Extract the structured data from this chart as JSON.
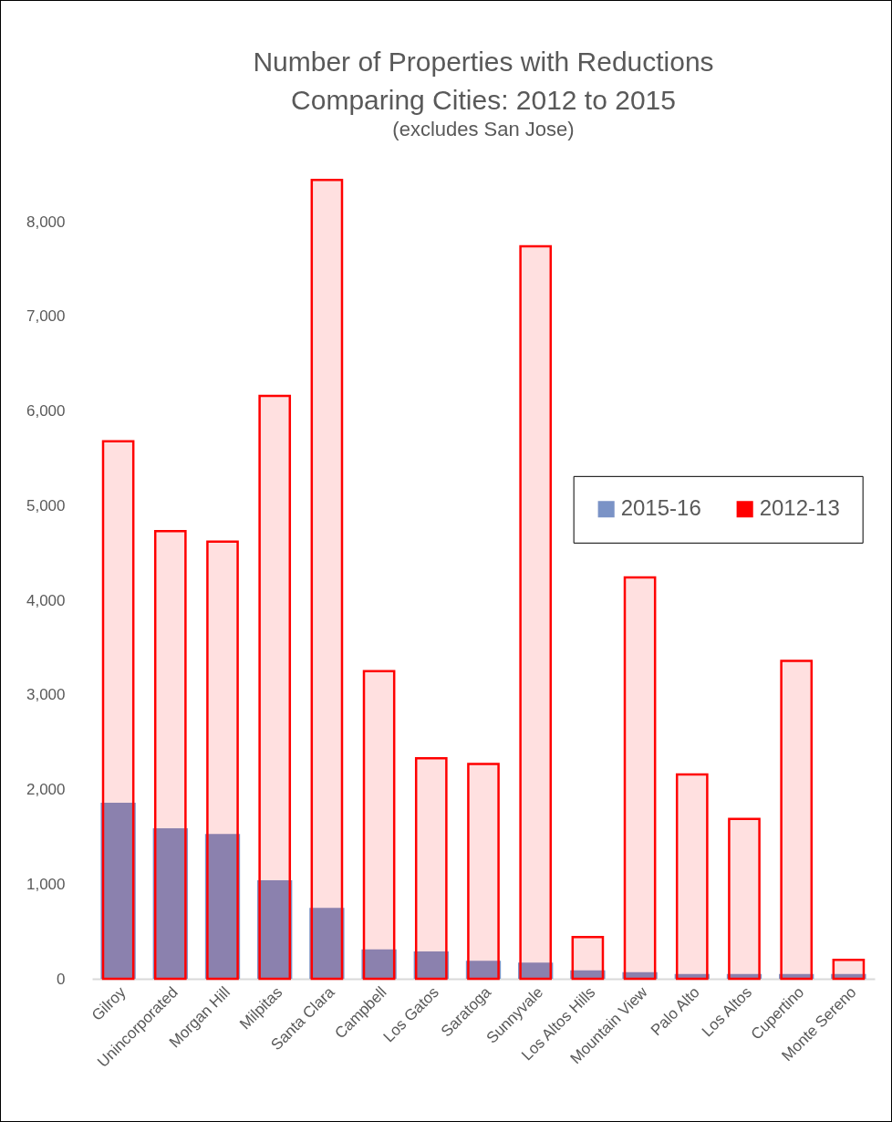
{
  "chart_data": {
    "type": "bar",
    "title": "Number of Properties with Reductions\nComparing Cities: 2012 to 2015",
    "subtitle": "(excludes San Jose)",
    "categories": [
      "Gilroy",
      "Unincorporated",
      "Morgan Hill",
      "Milpitas",
      "Santa Clara",
      "Campbell",
      "Los Gatos",
      "Saratoga",
      "Sunnyvale",
      "Los Altos Hills",
      "Mountain View",
      "Palo Alto",
      "Los Altos",
      "Cupertino",
      "Monte Sereno"
    ],
    "series": [
      {
        "name": "2015-16",
        "color": "#7b93c6",
        "values": [
          1860,
          1590,
          1530,
          1040,
          750,
          310,
          290,
          190,
          170,
          90,
          70,
          50,
          50,
          50,
          50
        ]
      },
      {
        "name": "2012-13",
        "color": "#ff0000",
        "values": [
          5680,
          4730,
          4620,
          6160,
          8440,
          3250,
          2330,
          2270,
          7740,
          440,
          4240,
          2160,
          1690,
          3360,
          200
        ]
      }
    ],
    "ylim": [
      0,
      8500
    ],
    "yticks": [
      0,
      {
        "value": 1000,
        "label": "1,000"
      },
      {
        "value": 2000,
        "label": "2,000"
      },
      {
        "value": 3000,
        "label": "3,000"
      },
      {
        "value": 4000,
        "label": "4,000"
      },
      {
        "value": 5000,
        "label": "5,000"
      },
      {
        "value": 6000,
        "label": "6,000"
      },
      {
        "value": 7000,
        "label": "7,000"
      },
      {
        "value": 8000,
        "label": "8,000"
      }
    ],
    "grid": false,
    "legend": "right"
  }
}
